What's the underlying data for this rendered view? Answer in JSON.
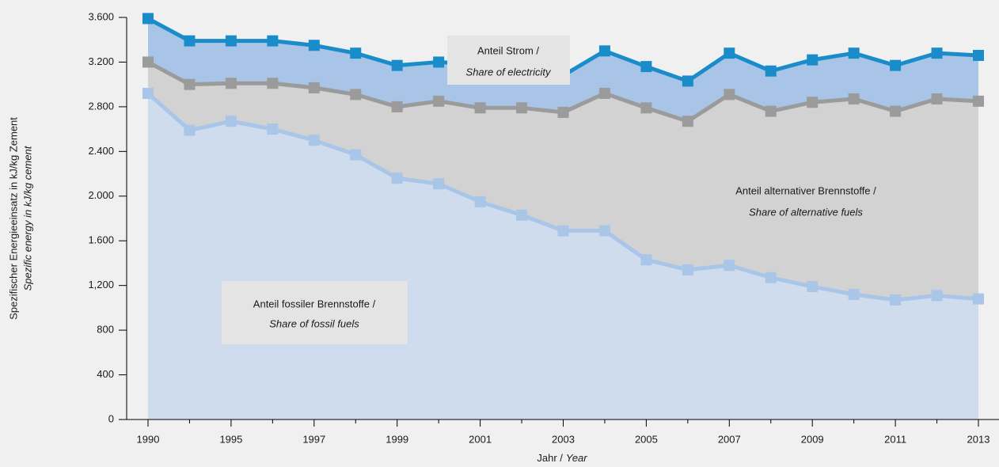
{
  "chart_data": {
    "type": "stacked_area_line",
    "y_label": [
      "Spezifischer Energieeinsatz in kJ/kg Zement",
      "Spezific energy in kJ/kg cement"
    ],
    "x_label": [
      "Jahr /",
      "Year"
    ],
    "categories": [
      "1990",
      null,
      "1995",
      null,
      "1997",
      null,
      "1999",
      null,
      "2001",
      null,
      "2003",
      null,
      "2005",
      null,
      "2007",
      null,
      "2009",
      null,
      "2011",
      null,
      "2013"
    ],
    "series": [
      {
        "name": [
          "Anteil fossiler Brennstoffe /",
          "Share of fossil fuels"
        ],
        "color": "#cfdcee",
        "line_color": "#a9c5e7",
        "values": [
          2920,
          2590,
          2670,
          2600,
          2500,
          2370,
          2160,
          2110,
          1950,
          1830,
          1690,
          1690,
          1430,
          1340,
          1380,
          1270,
          1190,
          1120,
          1070,
          1110,
          1080
        ]
      },
      {
        "name": [
          "Anteil alternativer Brennstoffe /",
          "Share of alternative fuels"
        ],
        "color": "#d2d2d2",
        "line_color": "#9b9b9b",
        "values": [
          280,
          410,
          340,
          410,
          470,
          540,
          640,
          740,
          840,
          960,
          1060,
          1230,
          1360,
          1330,
          1530,
          1490,
          1650,
          1750,
          1690,
          1760,
          1770
        ]
      },
      {
        "name": [
          "Anteil Strom /",
          "Share of electricity"
        ],
        "color": "#a8c5e7",
        "line_color": "#1a8cc9",
        "values": [
          390,
          390,
          380,
          380,
          380,
          370,
          370,
          350,
          390,
          330,
          330,
          380,
          370,
          360,
          370,
          360,
          380,
          410,
          410,
          410,
          410
        ]
      }
    ],
    "ylim": [
      0,
      3600
    ],
    "yticks": [
      0,
      400,
      800,
      {
        "value": 1200,
        "label": "1,200"
      },
      {
        "value": 1600,
        "label": "1.600"
      },
      {
        "value": 2000,
        "label": "2.000"
      },
      {
        "value": 2400,
        "label": "2.400"
      },
      {
        "value": 2800,
        "label": "2.800"
      },
      {
        "value": 3200,
        "label": "3.200"
      },
      {
        "value": 3600,
        "label": "3.600"
      }
    ],
    "grid": false
  }
}
